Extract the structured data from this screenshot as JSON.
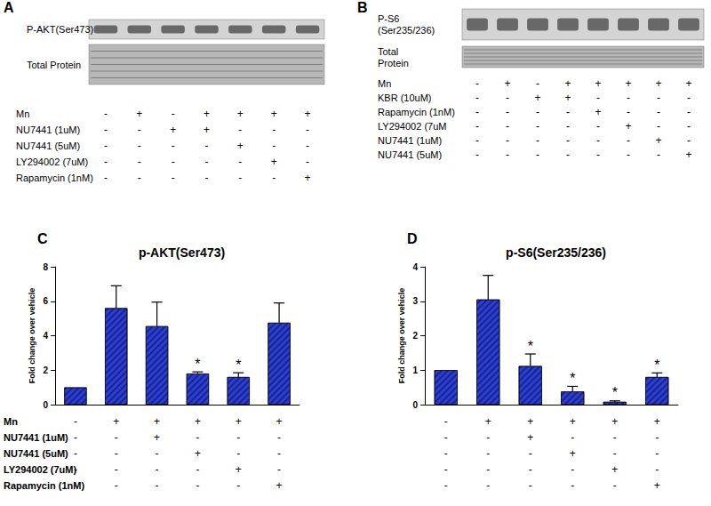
{
  "blots": [
    {
      "panel": "A",
      "rows": [
        "P-AKT(Ser473)",
        "Total Protein"
      ],
      "treatments": [
        {
          "label": "Mn",
          "marks": [
            "-",
            "+",
            "-",
            "+",
            "+",
            "+",
            "+"
          ]
        },
        {
          "label": "NU7441 (1uM)",
          "marks": [
            "-",
            "-",
            "+",
            "+",
            "-",
            "-",
            "-"
          ]
        },
        {
          "label": "NU7441 (5uM)",
          "marks": [
            "-",
            "-",
            "-",
            "-",
            "+",
            "-",
            "-"
          ]
        },
        {
          "label": "LY294002 (7uM)",
          "marks": [
            "-",
            "-",
            "-",
            "-",
            "-",
            "+",
            "-"
          ]
        },
        {
          "label": "Rapamycin (1nM)",
          "marks": [
            "-",
            "-",
            "-",
            "-",
            "-",
            "-",
            "+"
          ]
        }
      ]
    },
    {
      "panel": "B",
      "rows": [
        "P-S6\n(Ser235/236)",
        "Total\nProtein"
      ],
      "treatments": [
        {
          "label": "Mn",
          "marks": [
            "-",
            "+",
            "-",
            "+",
            "+",
            "+",
            "+",
            "+"
          ]
        },
        {
          "label": "KBR (10uM)",
          "marks": [
            "-",
            "-",
            "+",
            "+",
            "-",
            "-",
            "-",
            "-"
          ]
        },
        {
          "label": "Rapamycin (1nM)",
          "marks": [
            "-",
            "-",
            "-",
            "-",
            "+",
            "-",
            "-",
            "-"
          ]
        },
        {
          "label": "LY294002 (7uM",
          "marks": [
            "-",
            "-",
            "-",
            "-",
            "-",
            "+",
            "-",
            "-"
          ]
        },
        {
          "label": "NU7441 (1uM)",
          "marks": [
            "-",
            "-",
            "-",
            "-",
            "-",
            "-",
            "+",
            "-"
          ]
        },
        {
          "label": "NU7441 (5uM)",
          "marks": [
            "-",
            "-",
            "-",
            "-",
            "-",
            "-",
            "-",
            "+"
          ]
        }
      ]
    }
  ],
  "chart_data": [
    {
      "type": "bar",
      "panel": "C",
      "title": "p-AKT(Ser473)",
      "ylabel": "Fold change over vehicle",
      "categories": [
        null,
        null,
        null,
        null,
        null,
        null
      ],
      "values": [
        1,
        5.6,
        4.55,
        1.8,
        1.6,
        4.75
      ],
      "errors": [
        0,
        1.3,
        1.4,
        0.1,
        0.25,
        1.15
      ],
      "annotations": [
        null,
        null,
        null,
        "*",
        "*",
        null
      ],
      "color": "#2b3fd4",
      "ylim": [
        0,
        8
      ],
      "yticks": [
        0,
        2,
        4,
        6,
        8
      ],
      "grid": false,
      "treatments": [
        {
          "label": "Mn",
          "marks": [
            "-",
            "+",
            "+",
            "+",
            "+",
            "+"
          ]
        },
        {
          "label": "NU7441 (1uM)",
          "marks": [
            "-",
            "-",
            "+",
            "-",
            "-",
            "-"
          ]
        },
        {
          "label": "NU7441 (5uM)",
          "marks": [
            "-",
            "-",
            "-",
            "+",
            "-",
            "-"
          ]
        },
        {
          "label": "LY294002 (7uM)",
          "marks": [
            "-",
            "-",
            "-",
            "-",
            "+",
            "-"
          ]
        },
        {
          "label": "Rapamycin (1nM)",
          "marks": [
            "-",
            "-",
            "-",
            "-",
            "-",
            "+"
          ]
        }
      ]
    },
    {
      "type": "bar",
      "panel": "D",
      "title": "p-S6(Ser235/236)",
      "ylabel": "Fold change over vehicle",
      "categories": [
        null,
        null,
        null,
        null,
        null,
        null
      ],
      "values": [
        1,
        3.05,
        1.12,
        0.38,
        0.08,
        0.8
      ],
      "errors": [
        0,
        0.7,
        0.35,
        0.15,
        0.03,
        0.12
      ],
      "annotations": [
        null,
        null,
        "*",
        "*",
        "*",
        "*"
      ],
      "color": "#2b3fd4",
      "ylim": [
        0,
        4
      ],
      "yticks": [
        0,
        1,
        2,
        3,
        4
      ],
      "grid": false,
      "treatments": [
        {
          "marks": [
            "-",
            "+",
            "+",
            "+",
            "+",
            "+"
          ]
        },
        {
          "marks": [
            "-",
            "-",
            "+",
            "-",
            "-",
            "-"
          ]
        },
        {
          "marks": [
            "-",
            "-",
            "-",
            "+",
            "-",
            "-"
          ]
        },
        {
          "marks": [
            "-",
            "-",
            "-",
            "-",
            "+",
            "-"
          ]
        },
        {
          "marks": [
            "-",
            "-",
            "-",
            "-",
            "-",
            "+"
          ]
        }
      ]
    }
  ]
}
